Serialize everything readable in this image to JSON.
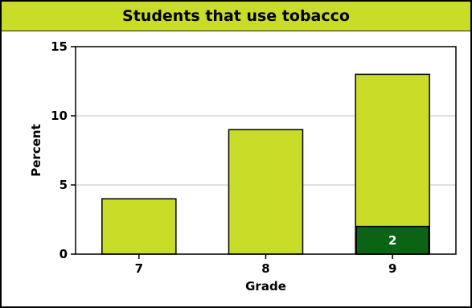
{
  "chart_data": {
    "type": "bar",
    "title": "Students that use tobacco",
    "xlabel": "Grade",
    "ylabel": "Percent",
    "categories": [
      "7",
      "8",
      "9"
    ],
    "values": [
      4,
      9,
      13
    ],
    "ylim": [
      0,
      15
    ],
    "yticks": [
      0,
      5,
      10,
      15
    ],
    "grid": true,
    "colors": {
      "bar": "#c8dc28",
      "title_bar": "#c8dc28",
      "badge": "#0a6414",
      "grid": "#c0c0c0"
    },
    "annotation": {
      "category": "9",
      "value": 2,
      "label": "2"
    }
  }
}
